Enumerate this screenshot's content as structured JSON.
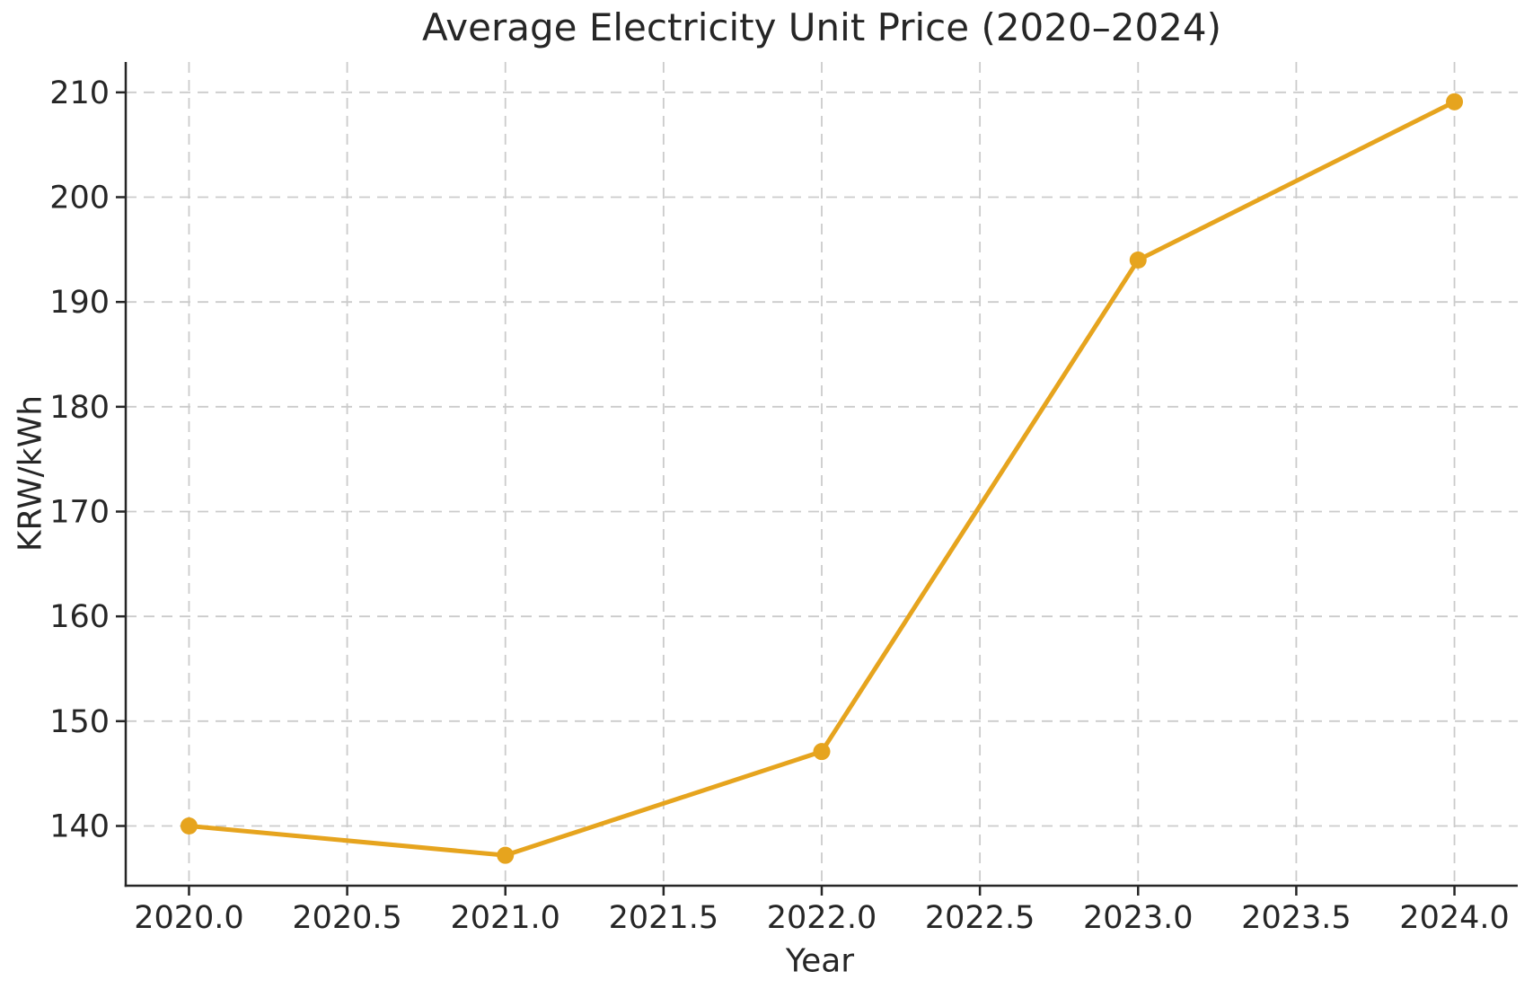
{
  "chart_data": {
    "type": "line",
    "title": "Average Electricity Unit Price (2020–2024)",
    "xlabel": "Year",
    "ylabel": "KRW/kWh",
    "x": [
      2020,
      2021,
      2022,
      2023,
      2024
    ],
    "values": [
      140.0,
      137.2,
      147.1,
      194.0,
      209.1
    ],
    "xlim": [
      2019.8,
      2024.2
    ],
    "ylim": [
      134.3,
      212.9
    ],
    "xticks": {
      "values": [
        2020.0,
        2020.5,
        2021.0,
        2021.5,
        2022.0,
        2022.5,
        2023.0,
        2023.5,
        2024.0
      ],
      "labels": [
        "2020.0",
        "2020.5",
        "2021.0",
        "2021.5",
        "2022.0",
        "2022.5",
        "2023.0",
        "2023.5",
        "2024.0"
      ]
    },
    "yticks": {
      "values": [
        140,
        150,
        160,
        170,
        180,
        190,
        200,
        210
      ],
      "labels": [
        "140",
        "150",
        "160",
        "170",
        "180",
        "190",
        "200",
        "210"
      ]
    },
    "grid": true,
    "grid_style": "dashed",
    "legend": false,
    "marker": "circle",
    "colors": {
      "line": "#E6A41E",
      "grid": "#cbcbcb",
      "spine": "#262626",
      "text": "#262626",
      "background": "#ffffff"
    }
  }
}
